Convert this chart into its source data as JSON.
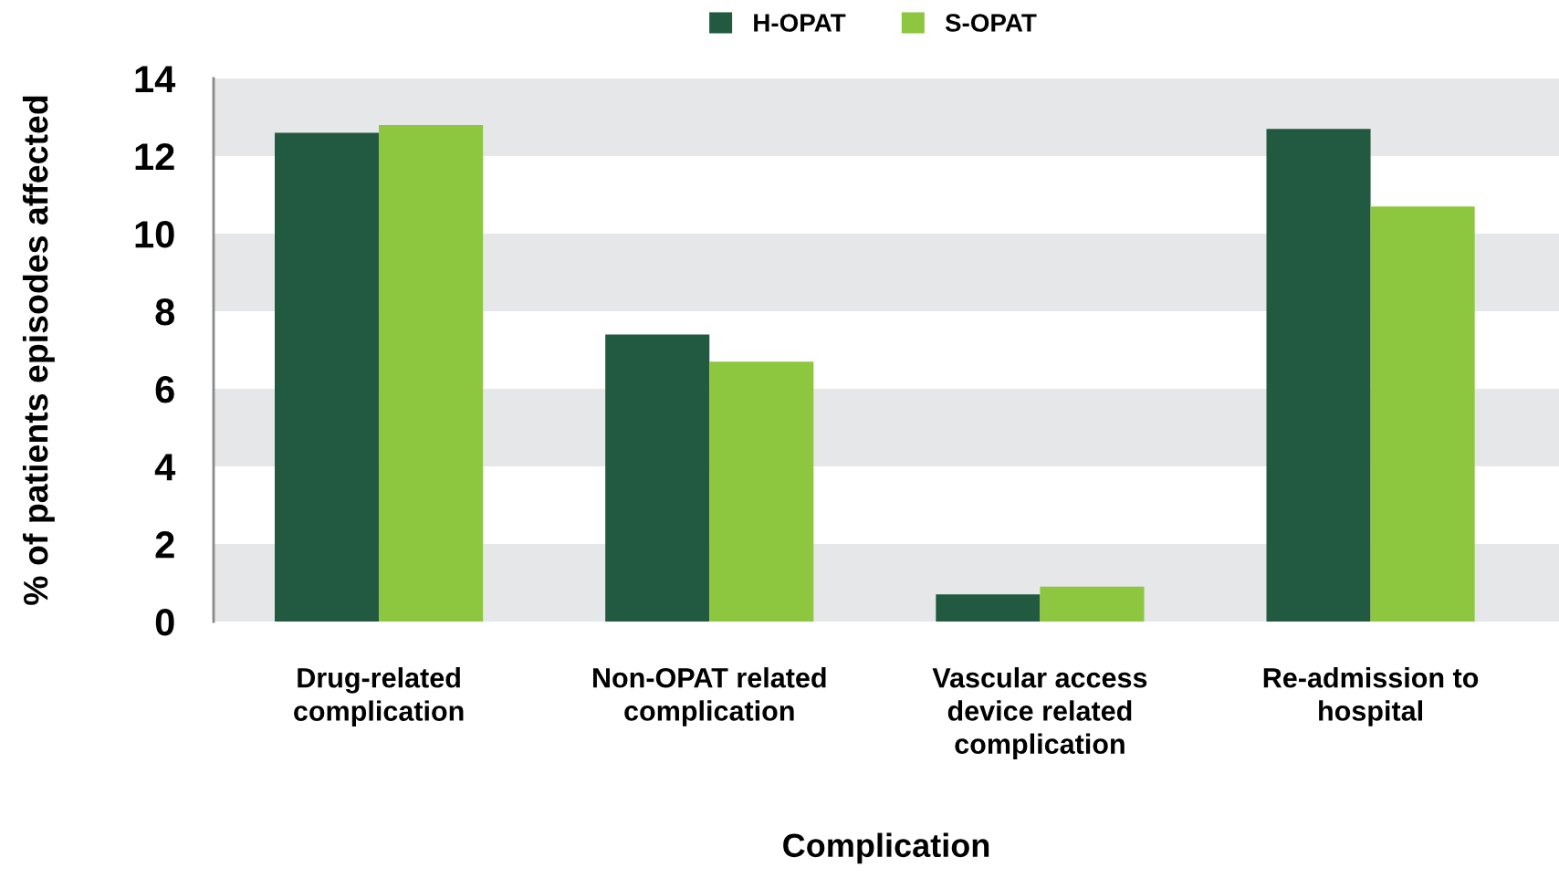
{
  "chart_data": {
    "type": "bar",
    "xlabel": "Complication",
    "ylabel": "% of patients episodes affected",
    "categories": [
      "Drug-related\ncomplication",
      "Non-OPAT related\ncomplication",
      "Vascular access\ndevice related\ncomplication",
      "Re-admission to\nhospital"
    ],
    "series": [
      {
        "name": "H-OPAT",
        "color": "#225a41",
        "values": [
          12.6,
          7.4,
          0.7,
          12.7
        ]
      },
      {
        "name": "S-OPAT",
        "color": "#8dc63f",
        "values": [
          12.8,
          6.7,
          0.9,
          10.7
        ]
      }
    ],
    "ylim": [
      0,
      14
    ],
    "yticks": [
      0,
      2,
      4,
      6,
      8,
      10,
      12,
      14
    ],
    "grid": false,
    "legend": "top",
    "bands": [
      {
        "axis": "y",
        "from": 0,
        "to": 2,
        "color": "#e6e7e8"
      },
      {
        "axis": "y",
        "from": 4,
        "to": 6,
        "color": "#e6e7e8"
      },
      {
        "axis": "y",
        "from": 8,
        "to": 10,
        "color": "#e6e7e8"
      },
      {
        "axis": "y",
        "from": 12,
        "to": 14,
        "color": "#e6e7e8"
      }
    ]
  }
}
